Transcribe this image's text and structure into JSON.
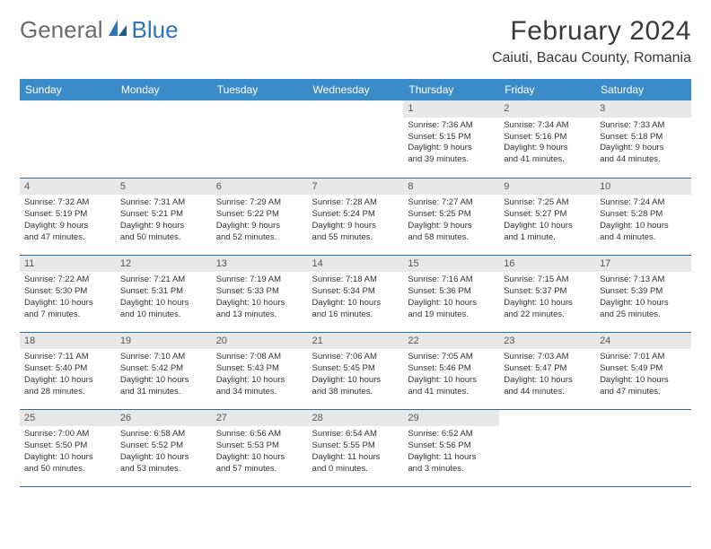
{
  "logo": {
    "text1": "General",
    "text2": "Blue"
  },
  "title": "February 2024",
  "location": "Caiuti, Bacau County, Romania",
  "colors": {
    "header_bg": "#3b8bc9",
    "header_text": "#ffffff",
    "border": "#2e6da4",
    "daynum_bg": "#e8e8e8",
    "text": "#333333",
    "logo_gray": "#6b6b6b",
    "logo_blue": "#2e75b6"
  },
  "weekdays": [
    "Sunday",
    "Monday",
    "Tuesday",
    "Wednesday",
    "Thursday",
    "Friday",
    "Saturday"
  ],
  "weeks": [
    [
      null,
      null,
      null,
      null,
      {
        "n": "1",
        "sr": "7:36 AM",
        "ss": "5:15 PM",
        "d1": "9 hours",
        "d2": "and 39 minutes."
      },
      {
        "n": "2",
        "sr": "7:34 AM",
        "ss": "5:16 PM",
        "d1": "9 hours",
        "d2": "and 41 minutes."
      },
      {
        "n": "3",
        "sr": "7:33 AM",
        "ss": "5:18 PM",
        "d1": "9 hours",
        "d2": "and 44 minutes."
      }
    ],
    [
      {
        "n": "4",
        "sr": "7:32 AM",
        "ss": "5:19 PM",
        "d1": "9 hours",
        "d2": "and 47 minutes."
      },
      {
        "n": "5",
        "sr": "7:31 AM",
        "ss": "5:21 PM",
        "d1": "9 hours",
        "d2": "and 50 minutes."
      },
      {
        "n": "6",
        "sr": "7:29 AM",
        "ss": "5:22 PM",
        "d1": "9 hours",
        "d2": "and 52 minutes."
      },
      {
        "n": "7",
        "sr": "7:28 AM",
        "ss": "5:24 PM",
        "d1": "9 hours",
        "d2": "and 55 minutes."
      },
      {
        "n": "8",
        "sr": "7:27 AM",
        "ss": "5:25 PM",
        "d1": "9 hours",
        "d2": "and 58 minutes."
      },
      {
        "n": "9",
        "sr": "7:25 AM",
        "ss": "5:27 PM",
        "d1": "10 hours",
        "d2": "and 1 minute."
      },
      {
        "n": "10",
        "sr": "7:24 AM",
        "ss": "5:28 PM",
        "d1": "10 hours",
        "d2": "and 4 minutes."
      }
    ],
    [
      {
        "n": "11",
        "sr": "7:22 AM",
        "ss": "5:30 PM",
        "d1": "10 hours",
        "d2": "and 7 minutes."
      },
      {
        "n": "12",
        "sr": "7:21 AM",
        "ss": "5:31 PM",
        "d1": "10 hours",
        "d2": "and 10 minutes."
      },
      {
        "n": "13",
        "sr": "7:19 AM",
        "ss": "5:33 PM",
        "d1": "10 hours",
        "d2": "and 13 minutes."
      },
      {
        "n": "14",
        "sr": "7:18 AM",
        "ss": "5:34 PM",
        "d1": "10 hours",
        "d2": "and 16 minutes."
      },
      {
        "n": "15",
        "sr": "7:16 AM",
        "ss": "5:36 PM",
        "d1": "10 hours",
        "d2": "and 19 minutes."
      },
      {
        "n": "16",
        "sr": "7:15 AM",
        "ss": "5:37 PM",
        "d1": "10 hours",
        "d2": "and 22 minutes."
      },
      {
        "n": "17",
        "sr": "7:13 AM",
        "ss": "5:39 PM",
        "d1": "10 hours",
        "d2": "and 25 minutes."
      }
    ],
    [
      {
        "n": "18",
        "sr": "7:11 AM",
        "ss": "5:40 PM",
        "d1": "10 hours",
        "d2": "and 28 minutes."
      },
      {
        "n": "19",
        "sr": "7:10 AM",
        "ss": "5:42 PM",
        "d1": "10 hours",
        "d2": "and 31 minutes."
      },
      {
        "n": "20",
        "sr": "7:08 AM",
        "ss": "5:43 PM",
        "d1": "10 hours",
        "d2": "and 34 minutes."
      },
      {
        "n": "21",
        "sr": "7:06 AM",
        "ss": "5:45 PM",
        "d1": "10 hours",
        "d2": "and 38 minutes."
      },
      {
        "n": "22",
        "sr": "7:05 AM",
        "ss": "5:46 PM",
        "d1": "10 hours",
        "d2": "and 41 minutes."
      },
      {
        "n": "23",
        "sr": "7:03 AM",
        "ss": "5:47 PM",
        "d1": "10 hours",
        "d2": "and 44 minutes."
      },
      {
        "n": "24",
        "sr": "7:01 AM",
        "ss": "5:49 PM",
        "d1": "10 hours",
        "d2": "and 47 minutes."
      }
    ],
    [
      {
        "n": "25",
        "sr": "7:00 AM",
        "ss": "5:50 PM",
        "d1": "10 hours",
        "d2": "and 50 minutes."
      },
      {
        "n": "26",
        "sr": "6:58 AM",
        "ss": "5:52 PM",
        "d1": "10 hours",
        "d2": "and 53 minutes."
      },
      {
        "n": "27",
        "sr": "6:56 AM",
        "ss": "5:53 PM",
        "d1": "10 hours",
        "d2": "and 57 minutes."
      },
      {
        "n": "28",
        "sr": "6:54 AM",
        "ss": "5:55 PM",
        "d1": "11 hours",
        "d2": "and 0 minutes."
      },
      {
        "n": "29",
        "sr": "6:52 AM",
        "ss": "5:56 PM",
        "d1": "11 hours",
        "d2": "and 3 minutes."
      },
      null,
      null
    ]
  ]
}
